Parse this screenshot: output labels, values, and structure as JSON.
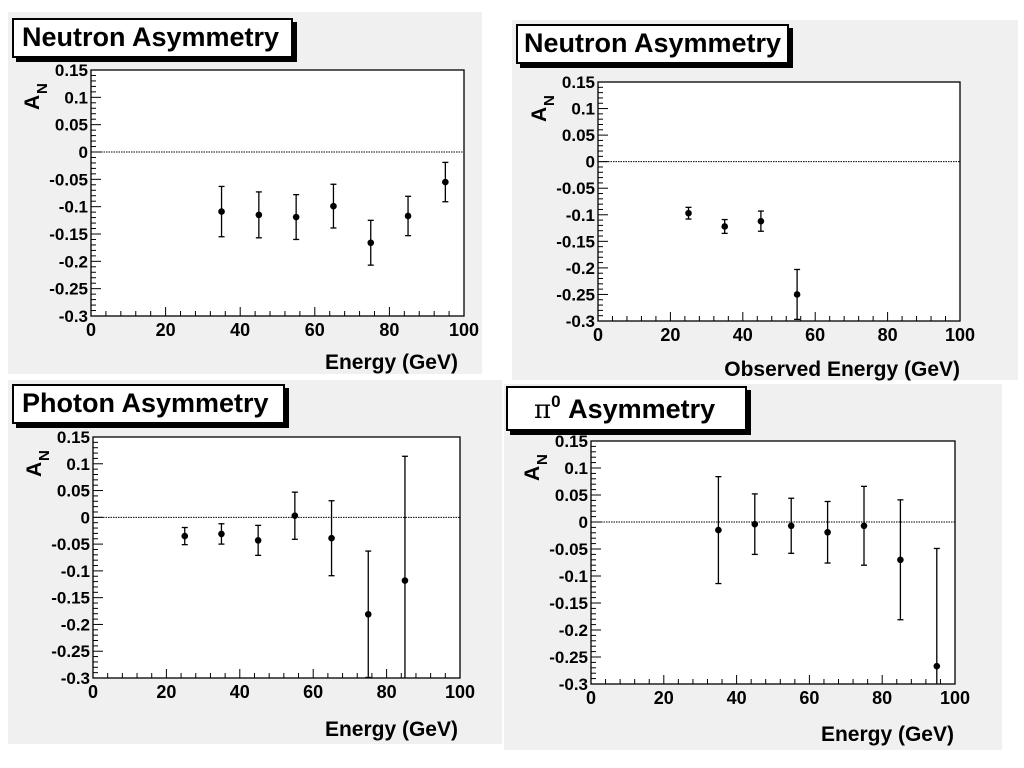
{
  "chart_data": [
    {
      "type": "scatter",
      "title": "Neutron Asymmetry",
      "xlabel": "Energy (GeV)",
      "ylabel_main": "A",
      "ylabel_sub": "N",
      "xlim": [
        0,
        100
      ],
      "ylim": [
        -0.3,
        0.15
      ],
      "xticks": [
        "0",
        "20",
        "40",
        "60",
        "80",
        "100"
      ],
      "yticks": [
        "0.15",
        "0.1",
        "0.05",
        "0",
        "-0.05",
        "-0.1",
        "-0.15",
        "-0.2",
        "-0.25",
        "-0.3"
      ],
      "zero_line": true,
      "points": [
        {
          "x": 35,
          "y": -0.109,
          "err": 0.046
        },
        {
          "x": 45,
          "y": -0.115,
          "err": 0.042
        },
        {
          "x": 55,
          "y": -0.119,
          "err": 0.041
        },
        {
          "x": 65,
          "y": -0.099,
          "err": 0.04
        },
        {
          "x": 75,
          "y": -0.166,
          "err": 0.041
        },
        {
          "x": 85,
          "y": -0.117,
          "err": 0.036
        },
        {
          "x": 95,
          "y": -0.055,
          "err": 0.036
        }
      ]
    },
    {
      "type": "scatter",
      "title": "Neutron Asymmetry",
      "xlabel": "Observed Energy (GeV)",
      "ylabel_main": "A",
      "ylabel_sub": "N",
      "xlim": [
        0,
        100
      ],
      "ylim": [
        -0.3,
        0.15
      ],
      "xticks": [
        "0",
        "20",
        "40",
        "60",
        "80",
        "100"
      ],
      "yticks": [
        "0.15",
        "0.1",
        "0.05",
        "0",
        "-0.05",
        "-0.1",
        "-0.15",
        "-0.2",
        "-0.25",
        "-0.3"
      ],
      "zero_line": true,
      "points": [
        {
          "x": 25,
          "y": -0.097,
          "err": 0.011
        },
        {
          "x": 35,
          "y": -0.122,
          "err": 0.013
        },
        {
          "x": 45,
          "y": -0.112,
          "err": 0.019
        },
        {
          "x": 55,
          "y": -0.25,
          "err": 0.047
        }
      ]
    },
    {
      "type": "scatter",
      "title": "Photon Asymmetry",
      "xlabel": "Energy (GeV)",
      "ylabel_main": "A",
      "ylabel_sub": "N",
      "xlim": [
        0,
        100
      ],
      "ylim": [
        -0.3,
        0.15
      ],
      "xticks": [
        "0",
        "20",
        "40",
        "60",
        "80",
        "100"
      ],
      "yticks": [
        "0.15",
        "0.1",
        "0.05",
        "0",
        "-0.05",
        "-0.1",
        "-0.15",
        "-0.2",
        "-0.25",
        "-0.3"
      ],
      "zero_line": true,
      "points": [
        {
          "x": 25,
          "y": -0.035,
          "err": 0.016
        },
        {
          "x": 35,
          "y": -0.031,
          "err": 0.019
        },
        {
          "x": 45,
          "y": -0.043,
          "err": 0.028
        },
        {
          "x": 55,
          "y": 0.003,
          "err": 0.044
        },
        {
          "x": 65,
          "y": -0.039,
          "err": 0.07
        },
        {
          "x": 75,
          "y": -0.181,
          "err": 0.118
        },
        {
          "x": 85,
          "y": -0.118,
          "err": 0.232
        }
      ]
    },
    {
      "type": "scatter",
      "title_symbol": "π",
      "title_sup": "0",
      "title_word": "Asymmetry",
      "xlabel": "Energy (GeV)",
      "ylabel_main": "A",
      "ylabel_sub": "N",
      "xlim": [
        0,
        100
      ],
      "ylim": [
        -0.3,
        0.15
      ],
      "xticks": [
        "0",
        "20",
        "40",
        "60",
        "80",
        "100"
      ],
      "yticks": [
        "0.15",
        "0.1",
        "0.05",
        "0",
        "-0.05",
        "-0.1",
        "-0.15",
        "-0.2",
        "-0.25",
        "-0.3"
      ],
      "zero_line": true,
      "points": [
        {
          "x": 35,
          "y": -0.015,
          "err": 0.099
        },
        {
          "x": 45,
          "y": -0.004,
          "err": 0.056
        },
        {
          "x": 55,
          "y": -0.007,
          "err": 0.051
        },
        {
          "x": 65,
          "y": -0.019,
          "err": 0.057
        },
        {
          "x": 75,
          "y": -0.007,
          "err": 0.073
        },
        {
          "x": 85,
          "y": -0.07,
          "err": 0.111
        },
        {
          "x": 95,
          "y": -0.267,
          "err": 0.218
        }
      ]
    }
  ]
}
